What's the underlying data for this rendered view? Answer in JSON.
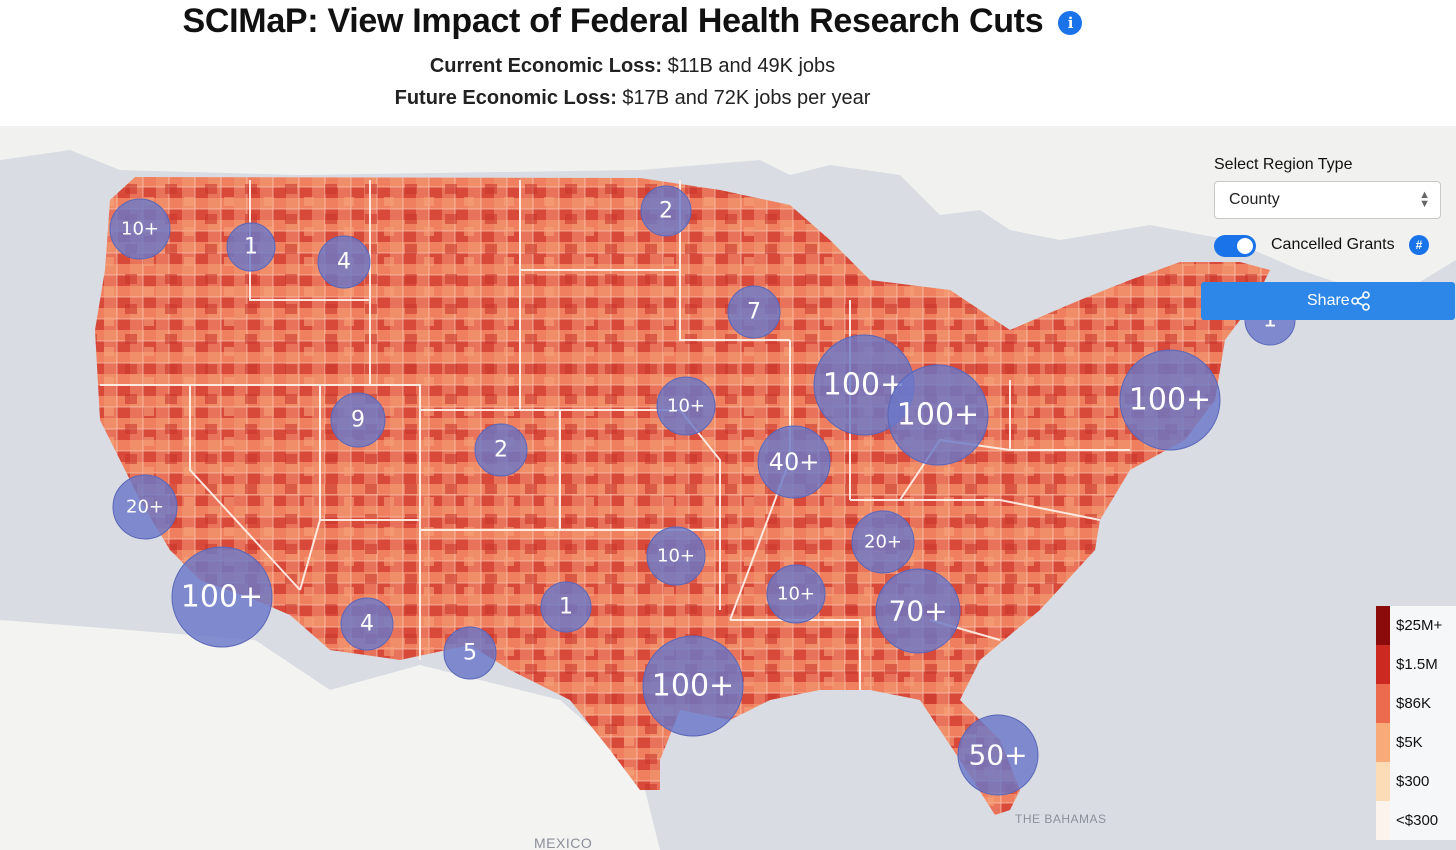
{
  "header": {
    "title": "SCIMaP: View Impact of Federal Health Research Cuts",
    "info_icon": "i",
    "current_label": "Current Economic Loss:",
    "current_value": " $11B and 49K jobs",
    "future_label": "Future Economic Loss:",
    "future_value": " $17B and 72K jobs per year"
  },
  "controls": {
    "region_label": "Select Region Type",
    "region_value": "County",
    "toggle_label": "Cancelled Grants",
    "toggle_on": true,
    "hash_badge": "#",
    "share_label": "Share"
  },
  "map_labels": {
    "country": "MEXICO",
    "bahamas": "THE BAHAMAS"
  },
  "legend": [
    {
      "label": "$25M+",
      "color": "#8b0b0b"
    },
    {
      "label": "$1.5M",
      "color": "#cc2a20"
    },
    {
      "label": "$86K",
      "color": "#ec6a4e"
    },
    {
      "label": "$5K",
      "color": "#f8aa78"
    },
    {
      "label": "$300",
      "color": "#fbdcb6"
    },
    {
      "label": "<$300",
      "color": "#fbf3ec"
    }
  ],
  "clusters": [
    "10+",
    "1",
    "4",
    "2",
    "7",
    "100+",
    "100+",
    "100+",
    "9",
    "10+",
    "2",
    "40+",
    "20+",
    "100+",
    "20+",
    "10+",
    "1",
    "4",
    "5",
    "100+",
    "10+",
    "70+",
    "50+",
    "1"
  ],
  "colors": {
    "accent": "#1a73e8",
    "cluster_fill": "#6a78c8",
    "land_base": "#e9735a",
    "water": "#d9dde3",
    "background_land": "#f3f3f1"
  }
}
